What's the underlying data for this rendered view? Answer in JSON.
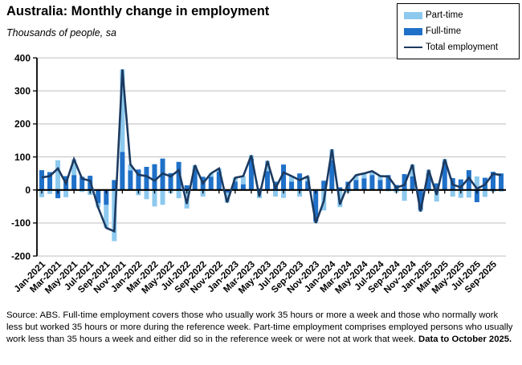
{
  "title": "Australia: Monthly change in employment",
  "subtitle": "Thousands of people, sa",
  "legend": {
    "items": [
      {
        "label": "Part-time",
        "swatch": "bar",
        "color": "#8DC9EE"
      },
      {
        "label": "Full-time",
        "swatch": "bar",
        "color": "#1F70C8"
      },
      {
        "label": "Total employment",
        "swatch": "line",
        "color": "#1C3A60"
      }
    ]
  },
  "footer": {
    "source_text": "Source: ABS.  Full-time employment covers those who usually work 35 hours or more a week and those who normally work less but worked 35 hours or  more during the reference week.  Part-time employment comprises employed persons who usually work less than 35 hours a week and either did so in the reference week or were not at work that week.  ",
    "bold_text": "Data to October 2025."
  },
  "chart_data": {
    "type": "bar",
    "subtype": "stacked-bars-with-line",
    "title": "Australia: Monthly change in employment",
    "ylabel": "Thousands of people, sa",
    "ylim": [
      -200,
      400
    ],
    "yticks": [
      400,
      300,
      200,
      100,
      0,
      -100,
      -200
    ],
    "grid": true,
    "legend_position": "top-right",
    "x_label_every": 2,
    "x": [
      "Jan-2021",
      "Feb-2021",
      "Mar-2021",
      "Apr-2021",
      "May-2021",
      "Jun-2021",
      "Jul-2021",
      "Aug-2021",
      "Sep-2021",
      "Oct-2021",
      "Nov-2021",
      "Dec-2021",
      "Jan-2022",
      "Feb-2022",
      "Mar-2022",
      "Apr-2022",
      "May-2022",
      "Jun-2022",
      "Jul-2022",
      "Aug-2022",
      "Sep-2022",
      "Oct-2022",
      "Nov-2022",
      "Dec-2022",
      "Jan-2023",
      "Feb-2023",
      "Mar-2023",
      "Apr-2023",
      "May-2023",
      "Jun-2023",
      "Jul-2023",
      "Aug-2023",
      "Sep-2023",
      "Oct-2023",
      "Nov-2023",
      "Dec-2023",
      "Jan-2024",
      "Feb-2024",
      "Mar-2024",
      "Apr-2024",
      "May-2024",
      "Jun-2024",
      "Jul-2024",
      "Aug-2024",
      "Sep-2024",
      "Oct-2024",
      "Nov-2024",
      "Dec-2024",
      "Jan-2025",
      "Feb-2025",
      "Mar-2025",
      "Apr-2025",
      "May-2025",
      "Jun-2025",
      "Jul-2025",
      "Aug-2025",
      "Sep-2025",
      "Oct-2025"
    ],
    "series": [
      {
        "name": "Part-time",
        "type": "bar",
        "stacked": true,
        "color": "#8DC9EE",
        "values": [
          -22,
          -12,
          90,
          -22,
          48,
          -6,
          -15,
          -13,
          -70,
          -155,
          250,
          18,
          -16,
          -28,
          -50,
          -45,
          -10,
          -25,
          -56,
          13,
          -20,
          10,
          10,
          -30,
          12,
          25,
          10,
          -25,
          31,
          -20,
          -24,
          17,
          -20,
          15,
          -5,
          -62,
          33,
          -52,
          -8,
          15,
          15,
          12,
          12,
          -4,
          -8,
          -33,
          36,
          -5,
          12,
          -35,
          8,
          -20,
          -24,
          -23,
          41,
          -21,
          -6,
          -5
        ]
      },
      {
        "name": "Full-time",
        "type": "bar",
        "stacked": true,
        "color": "#1F70C8",
        "values": [
          60,
          54,
          -25,
          42,
          45,
          40,
          43,
          -40,
          -45,
          30,
          115,
          59,
          62,
          70,
          78,
          95,
          51,
          85,
          14,
          62,
          40,
          40,
          55,
          -8,
          25,
          17,
          95,
          5,
          57,
          25,
          77,
          25,
          50,
          26,
          -95,
          28,
          90,
          8,
          25,
          30,
          35,
          45,
          30,
          45,
          15,
          48,
          41,
          -60,
          49,
          20,
          85,
          36,
          32,
          60,
          -37,
          37,
          55,
          50
        ]
      },
      {
        "name": "Total employment",
        "type": "line",
        "color": "#1C3A60",
        "values": [
          38,
          42,
          65,
          20,
          93,
          34,
          28,
          -53,
          -115,
          -125,
          365,
          77,
          46,
          42,
          28,
          50,
          41,
          60,
          -42,
          75,
          20,
          50,
          65,
          -38,
          37,
          42,
          105,
          -20,
          88,
          5,
          53,
          42,
          30,
          41,
          -100,
          -34,
          123,
          -44,
          17,
          45,
          50,
          57,
          42,
          41,
          7,
          15,
          77,
          -65,
          61,
          -15,
          93,
          16,
          8,
          37,
          4,
          16,
          49,
          45
        ]
      }
    ],
    "colors": {
      "grid": "#BFBFBF",
      "axis": "#000000",
      "text": "#000000"
    }
  }
}
